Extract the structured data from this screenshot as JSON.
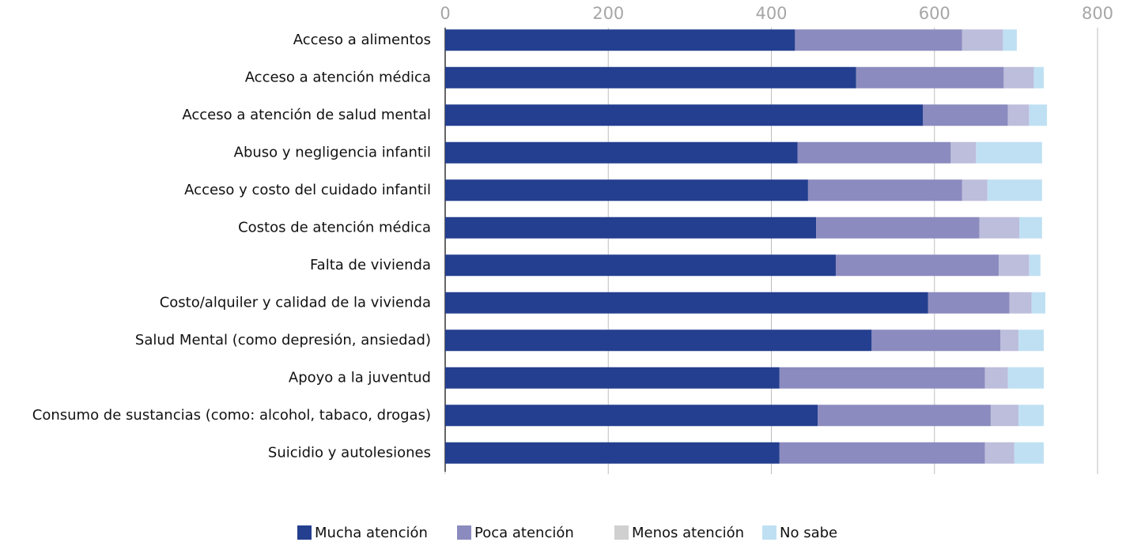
{
  "chart_data": {
    "type": "stacked_barh",
    "categories": [
      "Acceso a alimentos",
      "Acceso a atención médica",
      "Acceso a atención de salud mental",
      "Abuso y negligencia infantil",
      "Acceso y costo del cuidado infantil",
      "Costos de atención médica",
      "Falta de vivienda",
      "Costo/alquiler y calidad de la vivienda",
      "Salud Mental (como depresión, ansiedad)",
      "Apoyo a la juventud",
      "Consumo de sustancias (como: alcohol, tabaco, drogas)",
      "Suicidio y autolesiones"
    ],
    "series": [
      {
        "name": "Mucha atención",
        "color": "#243f8f",
        "values": [
          429,
          504,
          586,
          432,
          445,
          455,
          479,
          592,
          523,
          410,
          457,
          410
        ]
      },
      {
        "name": "Poca atención",
        "color": "#8b8bbf",
        "values": [
          205,
          181,
          104,
          188,
          189,
          200,
          200,
          100,
          158,
          252,
          212,
          252
        ]
      },
      {
        "name": "Menos atención",
        "color": "#bdbddc",
        "values": [
          50,
          37,
          26,
          31,
          31,
          49,
          37,
          27,
          22,
          28,
          34,
          36
        ]
      },
      {
        "name": "No sabe",
        "color": "#bfe0f3",
        "values": [
          17,
          12,
          22,
          81,
          67,
          28,
          14,
          17,
          31,
          44,
          31,
          36
        ]
      }
    ],
    "xlim": [
      0,
      800
    ],
    "xticks": [
      0,
      200,
      400,
      600,
      800
    ],
    "grid": true,
    "legend": "bottom"
  }
}
